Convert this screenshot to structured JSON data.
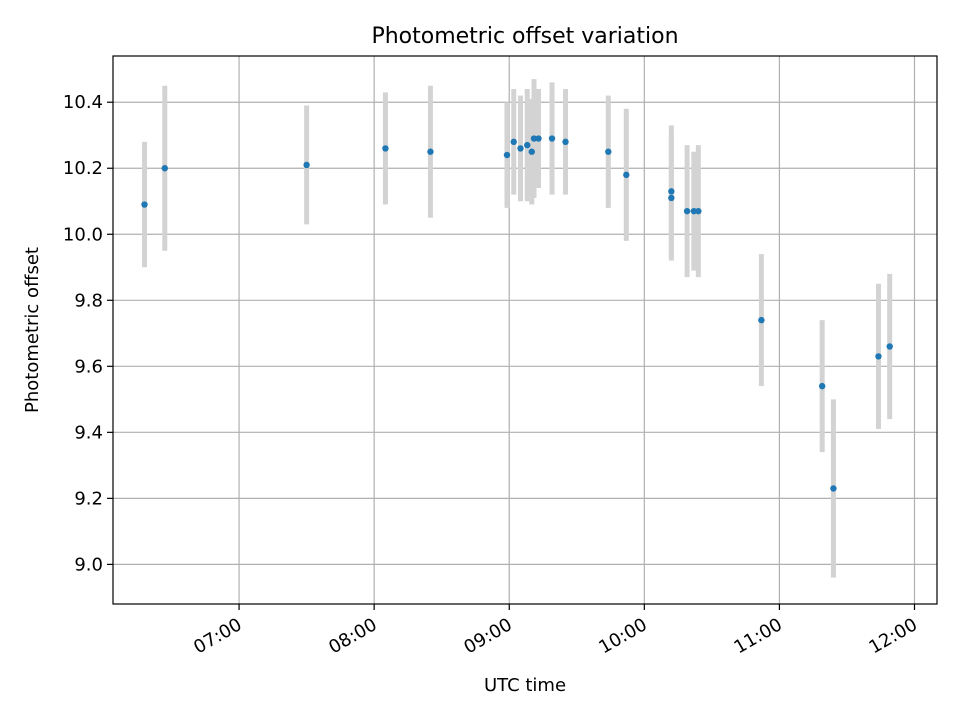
{
  "chart_data": {
    "type": "scatter",
    "title": "Photometric offset variation",
    "xlabel": "UTC time",
    "ylabel": "Photometric offset",
    "xlim": [
      "06:04",
      "12:10"
    ],
    "ylim": [
      8.88,
      10.54
    ],
    "xticks": [
      "07:00",
      "08:00",
      "09:00",
      "10:00",
      "11:00",
      "12:00"
    ],
    "yticks": [
      9.0,
      9.2,
      9.4,
      9.6,
      9.8,
      10.0,
      10.2,
      10.4
    ],
    "ytick_labels": [
      "9.0",
      "9.2",
      "9.4",
      "9.6",
      "9.8",
      "10.0",
      "10.2",
      "10.4"
    ],
    "grid": true,
    "colors": {
      "points": "#1f77b4",
      "errorbars": "#d3d3d3",
      "grid": "#b0b0b0"
    },
    "points": [
      {
        "x": "06:18",
        "y": 10.09,
        "yerr": 0.19
      },
      {
        "x": "06:27",
        "y": 10.2,
        "yerr": 0.25
      },
      {
        "x": "07:30",
        "y": 10.21,
        "yerr": 0.18
      },
      {
        "x": "08:05",
        "y": 10.26,
        "yerr": 0.17
      },
      {
        "x": "08:25",
        "y": 10.25,
        "yerr": 0.2
      },
      {
        "x": "08:59",
        "y": 10.24,
        "yerr": 0.16
      },
      {
        "x": "09:02",
        "y": 10.28,
        "yerr": 0.16
      },
      {
        "x": "09:05",
        "y": 10.26,
        "yerr": 0.16
      },
      {
        "x": "09:08",
        "y": 10.27,
        "yerr": 0.17
      },
      {
        "x": "09:10",
        "y": 10.25,
        "yerr": 0.16
      },
      {
        "x": "09:11",
        "y": 10.29,
        "yerr": 0.18
      },
      {
        "x": "09:13",
        "y": 10.29,
        "yerr": 0.15
      },
      {
        "x": "09:19",
        "y": 10.29,
        "yerr": 0.17
      },
      {
        "x": "09:25",
        "y": 10.28,
        "yerr": 0.16
      },
      {
        "x": "09:44",
        "y": 10.25,
        "yerr": 0.17
      },
      {
        "x": "09:52",
        "y": 10.18,
        "yerr": 0.2
      },
      {
        "x": "10:12",
        "y": 10.13,
        "yerr": 0.2
      },
      {
        "x": "10:12",
        "y": 10.11,
        "yerr": 0.19
      },
      {
        "x": "10:19",
        "y": 10.07,
        "yerr": 0.2
      },
      {
        "x": "10:22",
        "y": 10.07,
        "yerr": 0.18
      },
      {
        "x": "10:24",
        "y": 10.07,
        "yerr": 0.2
      },
      {
        "x": "10:52",
        "y": 9.74,
        "yerr": 0.2
      },
      {
        "x": "11:19",
        "y": 9.54,
        "yerr": 0.2
      },
      {
        "x": "11:24",
        "y": 9.23,
        "yerr": 0.27
      },
      {
        "x": "11:44",
        "y": 9.63,
        "yerr": 0.22
      },
      {
        "x": "11:49",
        "y": 9.66,
        "yerr": 0.22
      }
    ]
  }
}
